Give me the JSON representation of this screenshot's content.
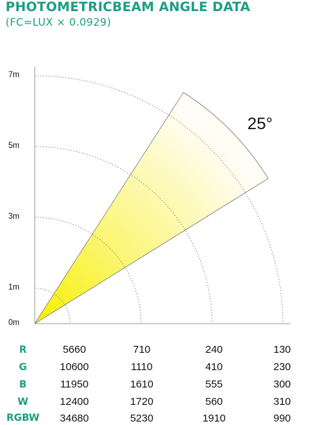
{
  "title": "PHOTOMETRICBEAM ANGLE DATA",
  "subtitle": "(FC=LUX × 0.0929)",
  "colors": {
    "accent": "#1e9e83",
    "beam_tip": "#f7f000",
    "beam_edge": "#fffdf5"
  },
  "beam": {
    "angle_label": "25°",
    "angle_degrees": 25
  },
  "axis": {
    "ticks": [
      "7m",
      "5m",
      "3m",
      "1m",
      "0m"
    ]
  },
  "table": {
    "rows": [
      {
        "label": "R",
        "values": [
          "5660",
          "710",
          "240",
          "130"
        ]
      },
      {
        "label": "G",
        "values": [
          "10600",
          "1110",
          "410",
          "230"
        ]
      },
      {
        "label": "B",
        "values": [
          "11950",
          "1610",
          "555",
          "300"
        ]
      },
      {
        "label": "W",
        "values": [
          "12400",
          "1720",
          "560",
          "310"
        ]
      },
      {
        "label": "RGBW",
        "values": [
          "34680",
          "5230",
          "1910",
          "990"
        ]
      }
    ]
  }
}
